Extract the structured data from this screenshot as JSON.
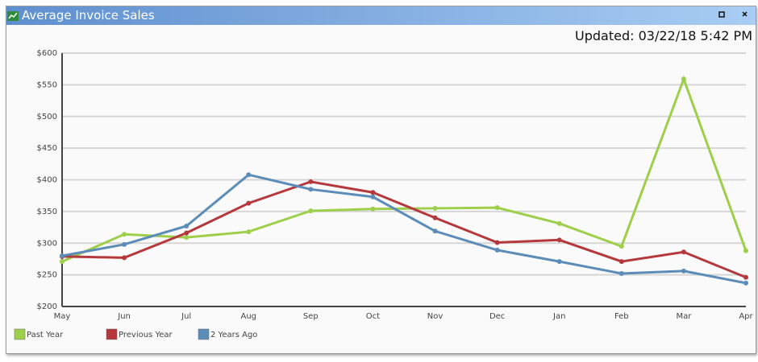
{
  "window": {
    "title": "Average Invoice Sales",
    "updated": "Updated: 03/22/18 5:42 PM"
  },
  "chart_data": {
    "type": "line",
    "categories": [
      "May",
      "Jun",
      "Jul",
      "Aug",
      "Sep",
      "Oct",
      "Nov",
      "Dec",
      "Jan",
      "Feb",
      "Mar",
      "Apr"
    ],
    "series": [
      {
        "name": "Past Year",
        "color": "#9ecf4a",
        "values": [
          271,
          314,
          309,
          318,
          351,
          354,
          355,
          356,
          331,
          295,
          559,
          288
        ]
      },
      {
        "name": "Previous Year",
        "color": "#b5393c",
        "values": [
          279,
          277,
          316,
          363,
          397,
          380,
          340,
          301,
          305,
          271,
          286,
          246
        ]
      },
      {
        "name": "2 Years Ago",
        "color": "#5b8db8",
        "values": [
          280,
          298,
          327,
          408,
          385,
          373,
          319,
          289,
          271,
          252,
          256,
          237
        ]
      }
    ],
    "ylim": [
      200,
      600
    ],
    "yticks": [
      {
        "value": 200,
        "label": "$200"
      },
      {
        "value": 250,
        "label": "$250"
      },
      {
        "value": 300,
        "label": "$300"
      },
      {
        "value": 350,
        "label": "$350"
      },
      {
        "value": 400,
        "label": "$400"
      },
      {
        "value": 450,
        "label": "$450"
      },
      {
        "value": 500,
        "label": "$500"
      },
      {
        "value": 550,
        "label": "$550"
      },
      {
        "value": 600,
        "label": "$600"
      }
    ],
    "grid": true,
    "legend": "bottom-left"
  }
}
